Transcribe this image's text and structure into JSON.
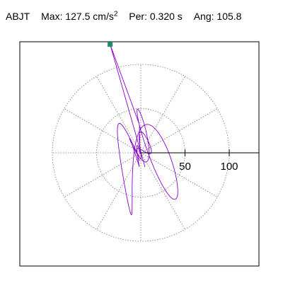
{
  "header": {
    "station": "ABJT",
    "max_label": "Max:",
    "max_value": "127.5 cm/s",
    "max_exp": "2",
    "per_label": "Per:",
    "per_value": "0.320 s",
    "ang_label": "Ang:",
    "ang_value": "105.8"
  },
  "chart_data": {
    "type": "scatter",
    "title": "",
    "xlabel": "",
    "ylabel": "",
    "rings": [
      50,
      100
    ],
    "ring_labels": [
      "50",
      "100"
    ],
    "spoke_interval_deg": 30,
    "max_radius": 100,
    "grid": true,
    "marker_color": "#1b8f6a",
    "trace_color": "#8a00cc",
    "peak": {
      "magnitude": 127.5,
      "angle_deg": 105.8
    },
    "x_range": [
      -105,
      135
    ],
    "y_range": [
      -130,
      125
    ]
  }
}
